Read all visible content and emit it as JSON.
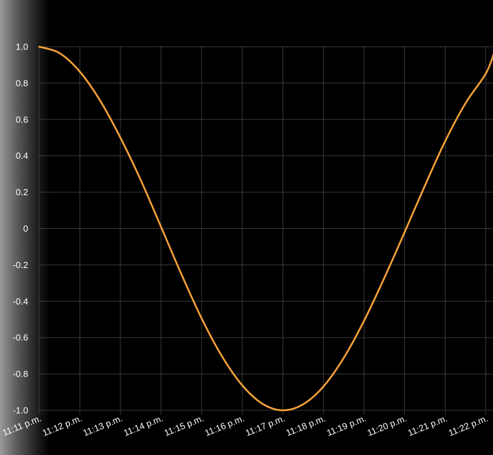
{
  "chart_data": {
    "type": "line",
    "title": "",
    "xlabel": "",
    "ylabel": "",
    "ylim": [
      -1.0,
      1.0
    ],
    "grid": true,
    "y_ticks": [
      "1.0",
      "0.8",
      "0.6",
      "0.4",
      "0.2",
      "0",
      "-0.2",
      "-0.4",
      "-0.6",
      "-0.8",
      "-1.0"
    ],
    "y_tick_values": [
      1.0,
      0.8,
      0.6,
      0.4,
      0.2,
      0,
      -0.2,
      -0.4,
      -0.6,
      -0.8,
      -1.0
    ],
    "x_ticks": [
      "11:11 p.m.",
      "11:12 p.m.",
      "11:13 p.m.",
      "11:14 p.m.",
      "11:15 p.m.",
      "11:16 p.m.",
      "11:17 p.m.",
      "11:18 p.m.",
      "11:19 p.m.",
      "11:20 p.m.",
      "11:21 p.m.",
      "11:22 p.m."
    ],
    "x_tick_minutes": [
      0,
      1,
      2,
      3,
      4,
      5,
      6,
      7,
      8,
      9,
      10,
      11
    ],
    "xlim_minutes": [
      -0.05,
      11.2
    ],
    "series": [
      {
        "color": "#f5a13a",
        "x_minutes": [
          0,
          0.5,
          1,
          1.5,
          2,
          2.5,
          3,
          3.5,
          4,
          4.5,
          5,
          5.5,
          6,
          6.5,
          7,
          7.5,
          8,
          8.5,
          9,
          9.5,
          10,
          10.5,
          11,
          11.2
        ],
        "values": [
          1.0,
          0.965,
          0.863,
          0.704,
          0.5,
          0.267,
          0.01,
          -0.25,
          -0.494,
          -0.702,
          -0.862,
          -0.964,
          -1.0,
          -0.967,
          -0.869,
          -0.712,
          -0.508,
          -0.272,
          -0.02,
          0.236,
          0.481,
          0.689,
          0.852,
          0.964
        ]
      }
    ]
  }
}
